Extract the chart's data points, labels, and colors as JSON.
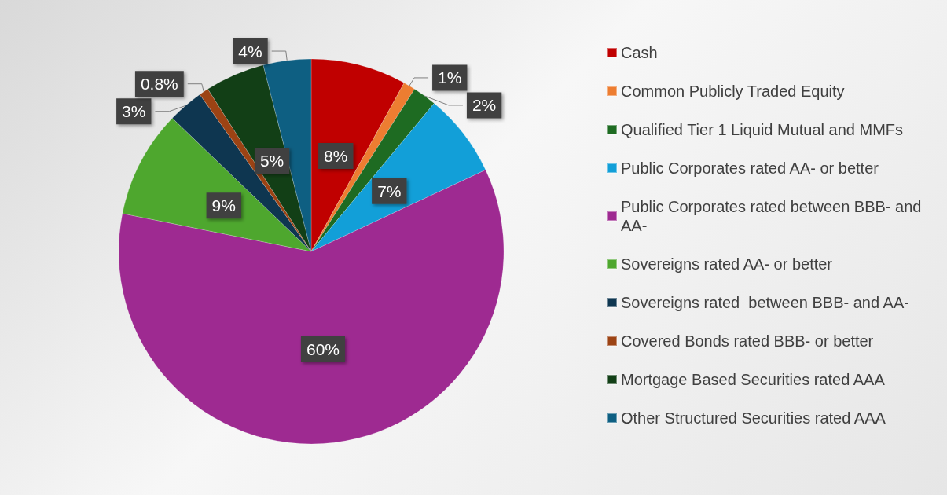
{
  "chart_data": {
    "type": "pie",
    "categories": [
      "Cash",
      "Common Publicly Traded Equity",
      "Qualified Tier 1 Liquid Mutual and MMFs",
      "Public Corporates rated AA- or better",
      "Public Corporates rated between BBB- and AA-",
      "Sovereigns rated AA- or better",
      "Sovereigns rated  between BBB- and AA-",
      "Covered Bonds rated BBB- or better",
      "Mortgage Based Securities rated AAA",
      "Other Structured Securities rated AAA"
    ],
    "values": [
      8,
      1,
      2,
      7,
      60,
      9,
      3,
      0.8,
      5,
      4
    ],
    "colors": [
      "#c00000",
      "#ed7d31",
      "#1e6b22",
      "#129fd8",
      "#9e2a91",
      "#4ea72e",
      "#0e3650",
      "#9c4314",
      "#123f16",
      "#0e5f82"
    ],
    "value_labels": [
      "8%",
      "1%",
      "2%",
      "7%",
      "60%",
      "9%",
      "3%",
      "0.8%",
      "5%",
      "4%"
    ],
    "legend": "right"
  }
}
